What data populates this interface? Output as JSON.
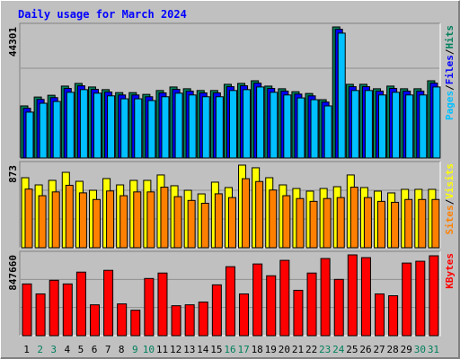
{
  "chart_data": [
    {
      "type": "bar",
      "title": "Daily usage for March 2024",
      "ylim": [
        0,
        44301
      ],
      "yticks": [
        44301
      ],
      "legend_separator": "/",
      "series": [
        {
          "name": "Hits",
          "color": "#00805c",
          "values": [
            17600,
            20600,
            21200,
            24300,
            25200,
            24000,
            23100,
            22100,
            22100,
            21500,
            22800,
            24000,
            23400,
            22800,
            22800,
            24900,
            25200,
            26100,
            24300,
            23400,
            22400,
            21800,
            19700,
            44301,
            24900,
            24900,
            23400,
            24300,
            23400,
            23400,
            26100
          ]
        },
        {
          "name": "Files",
          "color": "#0000ff",
          "values": [
            16800,
            19800,
            20400,
            23500,
            24400,
            23200,
            22300,
            21300,
            21300,
            20700,
            22000,
            23200,
            22600,
            22000,
            22000,
            24100,
            24400,
            25300,
            23500,
            22600,
            21600,
            21000,
            18900,
            43500,
            24100,
            24100,
            22600,
            23500,
            22600,
            22600,
            25300
          ]
        },
        {
          "name": "Pages",
          "color": "#00c0ff",
          "values": [
            15500,
            18500,
            19100,
            22200,
            23100,
            21900,
            21000,
            20000,
            20000,
            19400,
            20700,
            21900,
            21300,
            20700,
            20700,
            22800,
            23100,
            24000,
            22200,
            21300,
            20300,
            19700,
            17600,
            42200,
            22800,
            22800,
            21300,
            22200,
            21300,
            21300,
            24000
          ]
        }
      ]
    },
    {
      "type": "bar",
      "ylim": [
        0,
        873
      ],
      "yticks": [
        873
      ],
      "legend_separator": "/",
      "series": [
        {
          "name": "Visits",
          "color": "#ffff00",
          "values": [
            740,
            664,
            712,
            797,
            702,
            607,
            731,
            664,
            712,
            712,
            769,
            655,
            607,
            569,
            693,
            636,
            873,
            845,
            740,
            664,
            626,
            598,
            626,
            645,
            769,
            636,
            598,
            579,
            617,
            617,
            617
          ]
        },
        {
          "name": "Sites",
          "color": "#ff8000",
          "values": [
            620,
            550,
            590,
            660,
            580,
            510,
            600,
            550,
            590,
            590,
            640,
            540,
            500,
            470,
            570,
            530,
            730,
            700,
            610,
            550,
            520,
            490,
            520,
            530,
            640,
            530,
            490,
            480,
            510,
            510,
            510
          ]
        }
      ]
    },
    {
      "type": "bar",
      "ylim": [
        0,
        847660
      ],
      "yticks": [
        847660
      ],
      "categories": [
        "1",
        "2",
        "3",
        "4",
        "5",
        "6",
        "7",
        "8",
        "9",
        "10",
        "11",
        "12",
        "13",
        "14",
        "15",
        "16",
        "17",
        "18",
        "19",
        "20",
        "21",
        "22",
        "23",
        "24",
        "25",
        "26",
        "27",
        "28",
        "29",
        "30",
        "31"
      ],
      "category_colors": [
        "#000000",
        "#00805c",
        "#00805c",
        "#000000",
        "#000000",
        "#000000",
        "#000000",
        "#000000",
        "#00805c",
        "#00805c",
        "#000000",
        "#000000",
        "#000000",
        "#000000",
        "#000000",
        "#00805c",
        "#00805c",
        "#000000",
        "#000000",
        "#000000",
        "#000000",
        "#000000",
        "#00805c",
        "#00805c",
        "#000000",
        "#000000",
        "#000000",
        "#000000",
        "#000000",
        "#00805c",
        "#00805c"
      ],
      "series": [
        {
          "name": "KBytes",
          "color": "#ff0000",
          "values": [
            542900,
            438100,
            581000,
            542900,
            666700,
            323800,
            685700,
            333300,
            266700,
            600000,
            657200,
            314300,
            323800,
            352400,
            533300,
            723800,
            438100,
            752400,
            628600,
            790500,
            476200,
            657200,
            809500,
            590500,
            847660,
            819100,
            438100,
            419000,
            761900,
            781000,
            838100
          ]
        }
      ]
    }
  ]
}
